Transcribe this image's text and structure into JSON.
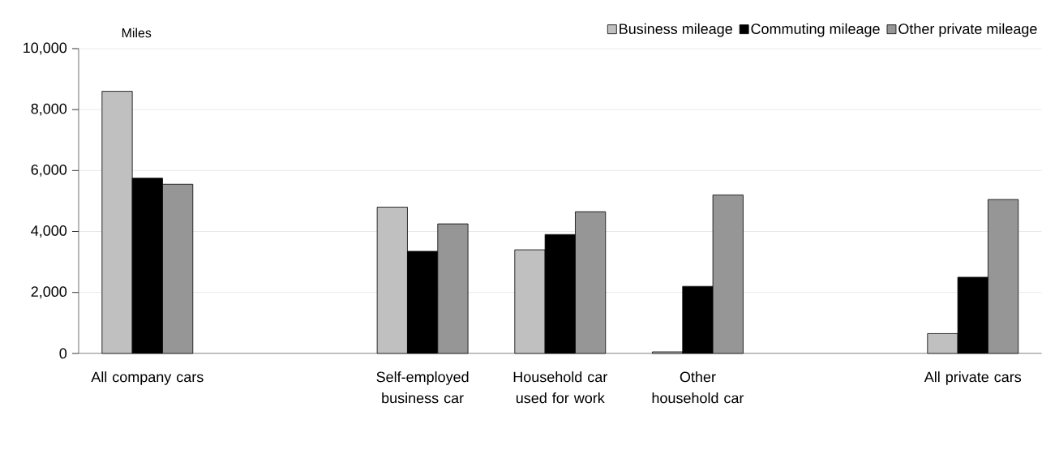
{
  "chart_data": {
    "type": "bar",
    "ylabel": "Miles",
    "categories": [
      "All company cars",
      null,
      "Self-employed business car",
      "Household car used for work",
      "Other household car",
      null,
      "All private cars"
    ],
    "series": [
      {
        "name": "Business mileage",
        "color": "#c0c0c0",
        "values": [
          8600,
          null,
          4800,
          3400,
          50,
          null,
          650
        ]
      },
      {
        "name": "Commuting mileage",
        "color": "#000000",
        "values": [
          5750,
          null,
          3350,
          3900,
          2200,
          null,
          2500
        ]
      },
      {
        "name": "Other private mileage",
        "color": "#969696",
        "values": [
          5550,
          null,
          4250,
          4650,
          5200,
          null,
          5050
        ]
      }
    ],
    "ylim": [
      0,
      10000
    ],
    "yticks": [
      0,
      {
        "value": 2000,
        "label": "2,000"
      },
      {
        "value": 4000,
        "label": "4,000"
      },
      {
        "value": 6000,
        "label": "6,000"
      },
      {
        "value": 8000,
        "label": "8,000"
      },
      {
        "value": 10000,
        "label": "10,000"
      }
    ],
    "grid": "y",
    "legend": "top right"
  }
}
